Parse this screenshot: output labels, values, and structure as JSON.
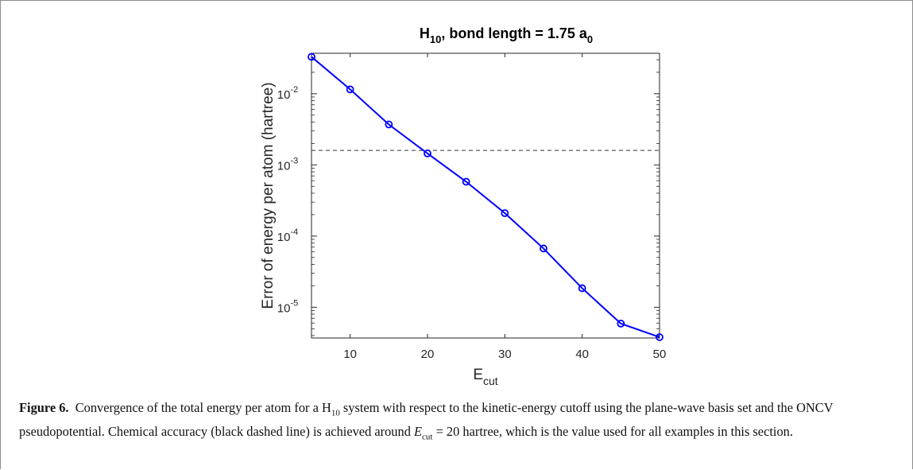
{
  "chart_data": {
    "type": "line",
    "title": {
      "main": "H",
      "sub": "10",
      "mid": ", bond length = 1.75 a",
      "sub2": "0"
    },
    "xlabel": {
      "main": "E",
      "sub": "cut"
    },
    "ylabel": "Error of energy per atom (hartree)",
    "x": [
      5,
      10,
      15,
      20,
      25,
      30,
      35,
      40,
      45,
      50
    ],
    "series": [
      {
        "values": [
          0.033,
          0.0115,
          0.0037,
          0.00145,
          0.00058,
          0.00021,
          6.7e-05,
          1.85e-05,
          5.9e-06,
          3.8e-06
        ],
        "color": "#0000ff"
      }
    ],
    "threshold": {
      "value": 0.0016,
      "style": "dashed",
      "color": "#333333"
    },
    "xlim": [
      5,
      50
    ],
    "ylim": [
      3.7e-06,
      0.037
    ],
    "yscale": "log",
    "xticks": [
      "10",
      "20",
      "30",
      "40",
      "50"
    ],
    "yticks": [
      {
        "base": "10",
        "exp": "-2"
      },
      {
        "base": "10",
        "exp": "-3"
      },
      {
        "base": "10",
        "exp": "-4"
      },
      {
        "base": "10",
        "exp": "-5"
      }
    ],
    "grid": false
  },
  "caption": {
    "label": "Figure 6.",
    "text1": "Convergence of the total energy per atom for a H",
    "sub1": "10",
    "text2": " system with respect to the kinetic-energy cutoff using the plane-wave basis set and the ONCV pseudopotential. Chemical accuracy (black dashed line) is achieved around ",
    "ecut": "E",
    "ecut_sub": "cut",
    "text3": " = 20 hartree, which is the value used for all examples in this section."
  }
}
